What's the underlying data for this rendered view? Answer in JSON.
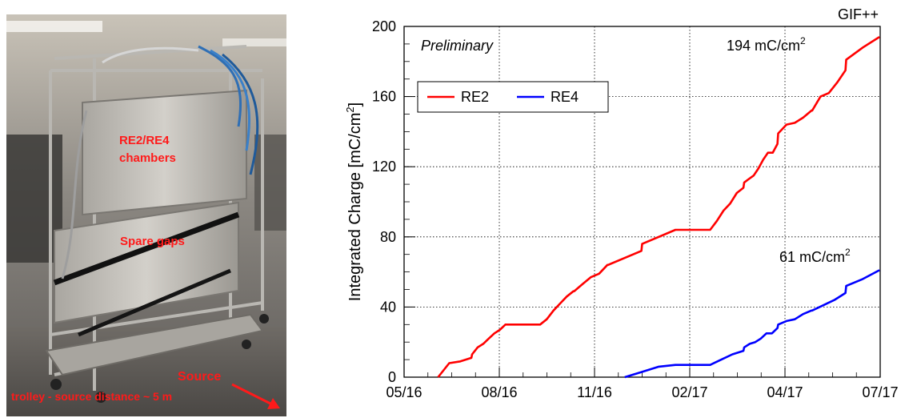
{
  "photo": {
    "label_chambers_line1": "RE2/RE4",
    "label_chambers_line2": "chambers",
    "label_spare": "Spare gaps",
    "label_source": "Source",
    "label_distance": "trolley - source distance ~ 5 m"
  },
  "chart_data": {
    "type": "line",
    "corner_label": "GIF++",
    "status_label": "Preliminary",
    "ylabel_main": "Integrated Charge [mC/cm",
    "ylabel_sup": "2",
    "ylabel_end": "]",
    "xlabel": "",
    "x_ticks": [
      "05/16",
      "08/16",
      "11/16",
      "02/17",
      "04/17",
      "07/17"
    ],
    "ylim": [
      0,
      200
    ],
    "y_ticks": [
      "0",
      "40",
      "80",
      "120",
      "160",
      "200"
    ],
    "grid": true,
    "legend_position": "top-left",
    "annotations": [
      {
        "text": "194 mC/cm",
        "sup": "2"
      },
      {
        "text": "61 mC/cm",
        "sup": "2"
      }
    ],
    "series": [
      {
        "name": "RE2",
        "color": "#ff0000",
        "points": [
          [
            "06/16",
            0
          ],
          [
            "06/16",
            8
          ],
          [
            "06/16",
            9
          ],
          [
            "06/16",
            11
          ],
          [
            "07/16",
            13
          ],
          [
            "07/16",
            17
          ],
          [
            "07/16",
            19
          ],
          [
            "07/16",
            22
          ],
          [
            "07/16",
            25
          ],
          [
            "07/16",
            27
          ],
          [
            "07/16",
            30
          ],
          [
            "09/16",
            30
          ],
          [
            "09/16",
            33
          ],
          [
            "09/16",
            38
          ],
          [
            "09/16",
            42
          ],
          [
            "09/16",
            46
          ],
          [
            "09/16",
            49
          ],
          [
            "10/16",
            49
          ],
          [
            "10/16",
            53
          ],
          [
            "10/16",
            57
          ],
          [
            "10/16",
            59
          ],
          [
            "10/16",
            64
          ],
          [
            "11/16",
            64
          ],
          [
            "11/16",
            68
          ],
          [
            "11/16",
            72
          ],
          [
            "12/16",
            76
          ],
          [
            "12/16",
            80
          ],
          [
            "12/16",
            84
          ],
          [
            "02/17",
            84
          ],
          [
            "02/17",
            89
          ],
          [
            "02/17",
            95
          ],
          [
            "02/17",
            99
          ],
          [
            "02/17",
            105
          ],
          [
            "02/17",
            108
          ],
          [
            "03/17",
            111
          ],
          [
            "03/17",
            113
          ],
          [
            "03/17",
            115
          ],
          [
            "03/17",
            119
          ],
          [
            "03/17",
            124
          ],
          [
            "03/17",
            128
          ],
          [
            "03/17",
            128
          ],
          [
            "03/17",
            133
          ],
          [
            "04/17",
            139
          ],
          [
            "04/17",
            144
          ],
          [
            "04/17",
            145
          ],
          [
            "04/17",
            148
          ],
          [
            "04/17",
            152
          ],
          [
            "05/17",
            152
          ],
          [
            "05/17",
            160
          ],
          [
            "05/17",
            162
          ],
          [
            "05/17",
            168
          ],
          [
            "05/17",
            175
          ],
          [
            "06/17",
            181
          ],
          [
            "06/17",
            188
          ],
          [
            "06/17",
            194
          ]
        ]
      },
      {
        "name": "RE4",
        "color": "#0000ff",
        "points": [
          [
            "11/16",
            0
          ],
          [
            "12/16",
            3
          ],
          [
            "12/16",
            6
          ],
          [
            "12/16",
            7
          ],
          [
            "02/17",
            7
          ],
          [
            "02/17",
            10
          ],
          [
            "02/17",
            13
          ],
          [
            "02/17",
            15
          ],
          [
            "03/17",
            17
          ],
          [
            "03/17",
            19
          ],
          [
            "03/17",
            20
          ],
          [
            "03/17",
            22
          ],
          [
            "03/17",
            25
          ],
          [
            "03/17",
            25
          ],
          [
            "03/17",
            28
          ],
          [
            "04/17",
            30
          ],
          [
            "04/17",
            32
          ],
          [
            "04/17",
            33
          ],
          [
            "04/17",
            36
          ],
          [
            "04/17",
            38
          ],
          [
            "05/17",
            38
          ],
          [
            "05/17",
            41
          ],
          [
            "05/17",
            44
          ],
          [
            "05/17",
            48
          ],
          [
            "06/17",
            52
          ],
          [
            "06/17",
            56
          ],
          [
            "06/17",
            61
          ]
        ]
      }
    ]
  }
}
